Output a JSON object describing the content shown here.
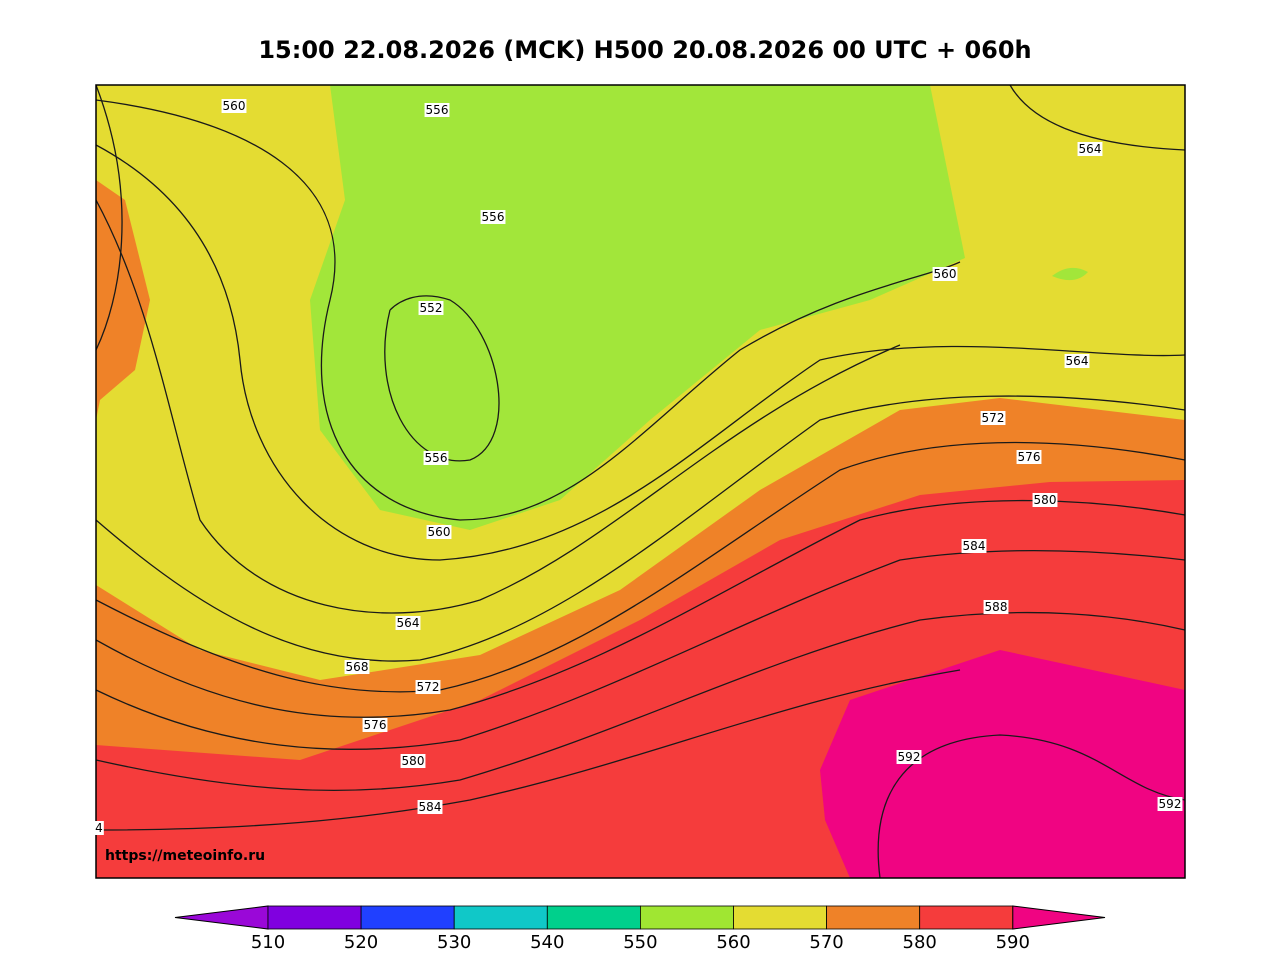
{
  "title": "15:00 22.08.2026 (MCK) H500  20.08.2026 00 UTC + 060h",
  "source": "https://meteoinfo.ru",
  "contour_labels": [
    "560",
    "556",
    "564",
    "556",
    "552",
    "560",
    "564",
    "556",
    "560",
    "572",
    "576",
    "580",
    "584",
    "568",
    "572",
    "564",
    "576",
    "588",
    "580",
    "584",
    "592",
    "592",
    "4"
  ],
  "colorbar": {
    "ticks": [
      510,
      520,
      530,
      540,
      550,
      560,
      570,
      580,
      590
    ],
    "colors": [
      "#9a08d8",
      "#8000e0",
      "#2040ff",
      "#10c8c8",
      "#00d08c",
      "#a0e632",
      "#e4dc32",
      "#ef8228",
      "#f53c3c",
      "#f00482"
    ]
  }
}
